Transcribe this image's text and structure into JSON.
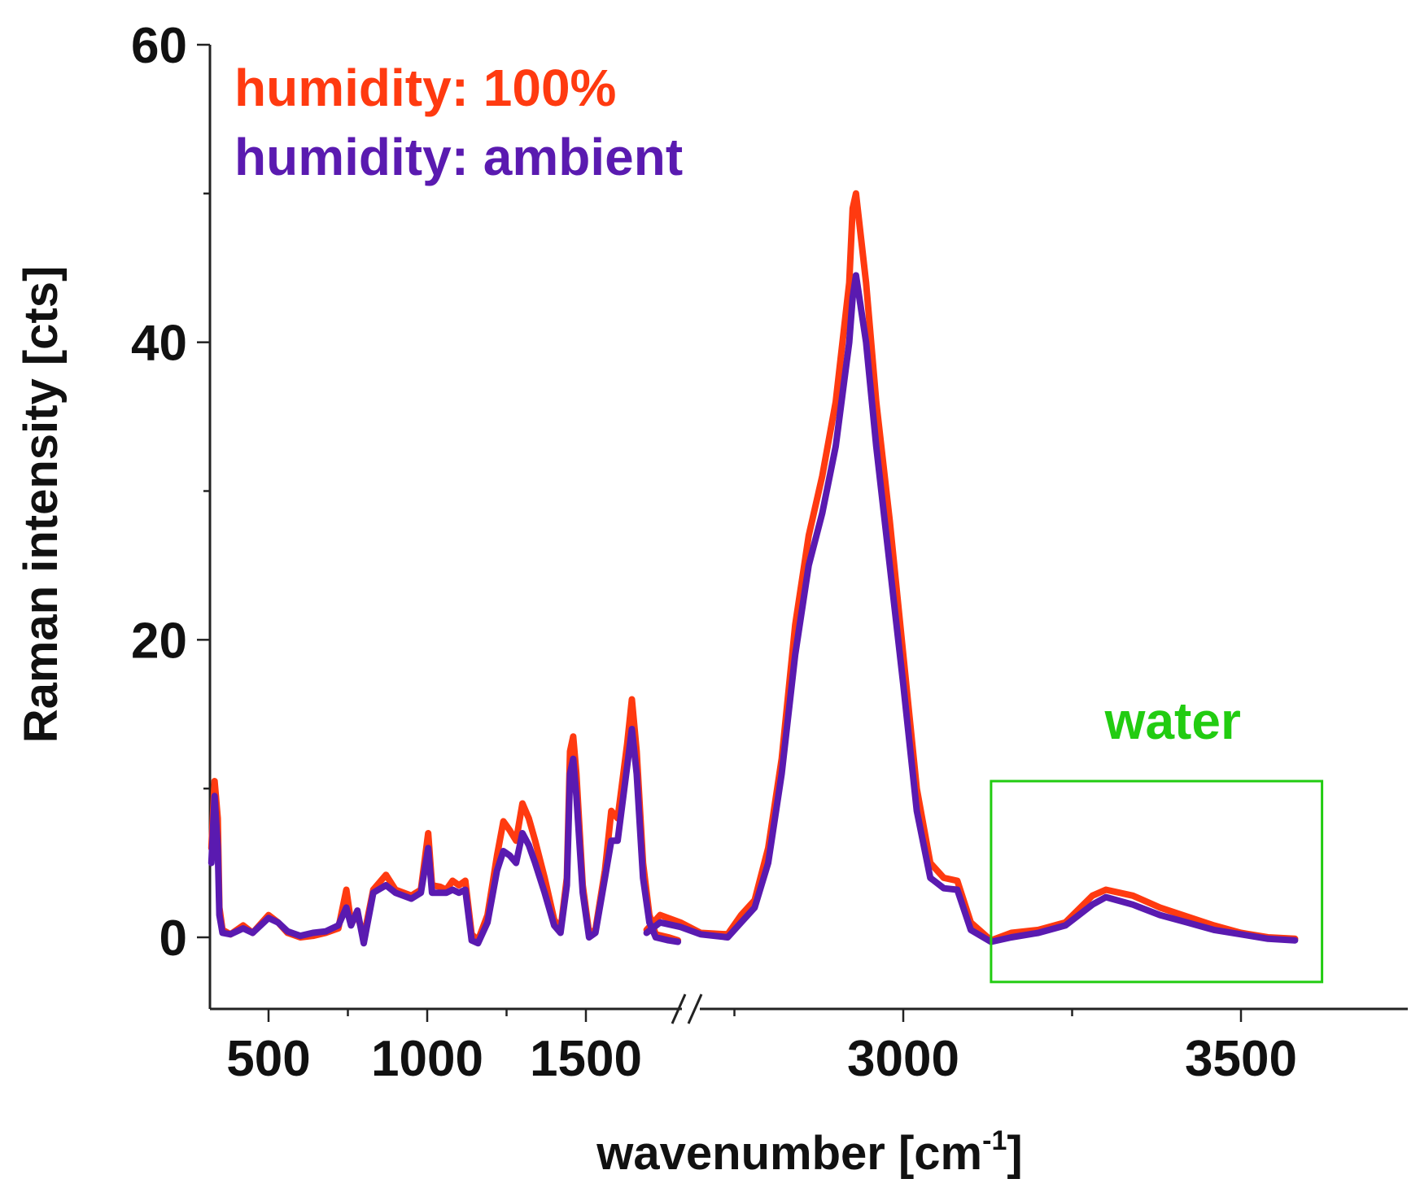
{
  "chart_data": {
    "type": "line",
    "title": "",
    "xlabel": "wavenumber [cm",
    "xlabel_sup": "-1",
    "xlabel_close": "]",
    "ylabel": "Raman intensity [cts]",
    "ylim": [
      -5,
      60
    ],
    "yticks": [
      0,
      20,
      40,
      60
    ],
    "xticks": [
      500,
      1000,
      1500,
      3000,
      3500
    ],
    "axis_break": [
      1820,
      2600
    ],
    "segments": [
      [
        320,
        1820
      ],
      [
        2600,
        3700
      ]
    ],
    "legend": [
      {
        "label": "humidity: 100%",
        "color": "#ff3a10"
      },
      {
        "label": "humidity: ambient",
        "color": "#5a1ab0"
      }
    ],
    "annotation": {
      "label": "water",
      "color": "#22cc11",
      "box_x": [
        3130,
        3620
      ],
      "box_y": [
        -3,
        10.5
      ]
    },
    "series": [
      {
        "name": "humidity: 100%",
        "color": "#ff3a10",
        "points": [
          [
            320,
            6
          ],
          [
            330,
            10.5
          ],
          [
            340,
            8
          ],
          [
            345,
            2
          ],
          [
            355,
            0.5
          ],
          [
            380,
            0.2
          ],
          [
            420,
            0.8
          ],
          [
            450,
            0.3
          ],
          [
            500,
            1.5
          ],
          [
            530,
            1.0
          ],
          [
            560,
            0.3
          ],
          [
            600,
            0.0
          ],
          [
            640,
            0.1
          ],
          [
            680,
            0.3
          ],
          [
            720,
            0.6
          ],
          [
            745,
            3.2
          ],
          [
            760,
            1.0
          ],
          [
            780,
            1.5
          ],
          [
            800,
            0.0
          ],
          [
            830,
            3.2
          ],
          [
            870,
            4.2
          ],
          [
            900,
            3.2
          ],
          [
            950,
            2.8
          ],
          [
            980,
            3.2
          ],
          [
            1003,
            7.0
          ],
          [
            1015,
            3.5
          ],
          [
            1040,
            3.4
          ],
          [
            1060,
            3.2
          ],
          [
            1080,
            3.8
          ],
          [
            1100,
            3.5
          ],
          [
            1120,
            3.8
          ],
          [
            1140,
            0.2
          ],
          [
            1160,
            -0.2
          ],
          [
            1190,
            1.5
          ],
          [
            1220,
            5.5
          ],
          [
            1240,
            7.8
          ],
          [
            1260,
            7.2
          ],
          [
            1280,
            6.5
          ],
          [
            1300,
            9.0
          ],
          [
            1320,
            8.0
          ],
          [
            1340,
            6.5
          ],
          [
            1370,
            4.0
          ],
          [
            1400,
            1.2
          ],
          [
            1420,
            0.5
          ],
          [
            1440,
            4.0
          ],
          [
            1450,
            12.5
          ],
          [
            1460,
            13.5
          ],
          [
            1470,
            11.0
          ],
          [
            1490,
            3.5
          ],
          [
            1510,
            0.3
          ],
          [
            1530,
            0.5
          ],
          [
            1560,
            4.5
          ],
          [
            1580,
            8.5
          ],
          [
            1600,
            8.0
          ],
          [
            1630,
            13.0
          ],
          [
            1645,
            16.0
          ],
          [
            1660,
            12.5
          ],
          [
            1680,
            5.0
          ],
          [
            1700,
            1.5
          ],
          [
            1720,
            0.2
          ],
          [
            1760,
            0.0
          ],
          [
            1790,
            -0.2
          ]
        ],
        "points2": [
          [
            2620,
            0.5
          ],
          [
            2640,
            1.5
          ],
          [
            2670,
            1.0
          ],
          [
            2700,
            0.3
          ],
          [
            2740,
            0.2
          ],
          [
            2760,
            1.5
          ],
          [
            2780,
            2.5
          ],
          [
            2800,
            6.0
          ],
          [
            2820,
            12.0
          ],
          [
            2840,
            21.0
          ],
          [
            2860,
            27.0
          ],
          [
            2880,
            31.0
          ],
          [
            2900,
            36.0
          ],
          [
            2920,
            44.0
          ],
          [
            2925,
            49.0
          ],
          [
            2930,
            50.0
          ],
          [
            2945,
            44.0
          ],
          [
            2960,
            36.0
          ],
          [
            2980,
            28.0
          ],
          [
            3000,
            19.0
          ],
          [
            3020,
            10.0
          ],
          [
            3040,
            5.0
          ],
          [
            3060,
            4.0
          ],
          [
            3080,
            3.8
          ],
          [
            3100,
            1.0
          ],
          [
            3130,
            -0.2
          ],
          [
            3160,
            0.3
          ],
          [
            3200,
            0.5
          ],
          [
            3240,
            1.0
          ],
          [
            3280,
            2.8
          ],
          [
            3300,
            3.2
          ],
          [
            3340,
            2.8
          ],
          [
            3380,
            2.0
          ],
          [
            3420,
            1.4
          ],
          [
            3460,
            0.8
          ],
          [
            3500,
            0.3
          ],
          [
            3540,
            0.0
          ],
          [
            3580,
            -0.1
          ]
        ]
      },
      {
        "name": "humidity: ambient",
        "color": "#5a1ab0",
        "points": [
          [
            320,
            5
          ],
          [
            330,
            9.5
          ],
          [
            340,
            6
          ],
          [
            345,
            1.5
          ],
          [
            355,
            0.3
          ],
          [
            380,
            0.2
          ],
          [
            420,
            0.6
          ],
          [
            450,
            0.3
          ],
          [
            500,
            1.3
          ],
          [
            530,
            1.0
          ],
          [
            560,
            0.4
          ],
          [
            600,
            0.1
          ],
          [
            640,
            0.3
          ],
          [
            680,
            0.4
          ],
          [
            720,
            0.8
          ],
          [
            745,
            2.0
          ],
          [
            760,
            0.8
          ],
          [
            780,
            1.8
          ],
          [
            800,
            -0.4
          ],
          [
            830,
            3.0
          ],
          [
            870,
            3.5
          ],
          [
            900,
            3.0
          ],
          [
            950,
            2.6
          ],
          [
            980,
            3.0
          ],
          [
            1003,
            6.0
          ],
          [
            1015,
            3.0
          ],
          [
            1040,
            3.0
          ],
          [
            1060,
            3.0
          ],
          [
            1080,
            3.2
          ],
          [
            1100,
            3.0
          ],
          [
            1120,
            3.2
          ],
          [
            1140,
            -0.2
          ],
          [
            1160,
            -0.4
          ],
          [
            1190,
            1.0
          ],
          [
            1220,
            4.5
          ],
          [
            1240,
            5.8
          ],
          [
            1260,
            5.5
          ],
          [
            1280,
            5.0
          ],
          [
            1300,
            7.0
          ],
          [
            1320,
            6.2
          ],
          [
            1340,
            5.0
          ],
          [
            1370,
            3.0
          ],
          [
            1400,
            0.8
          ],
          [
            1420,
            0.3
          ],
          [
            1440,
            3.5
          ],
          [
            1450,
            11.0
          ],
          [
            1460,
            12.0
          ],
          [
            1470,
            9.5
          ],
          [
            1490,
            3.0
          ],
          [
            1510,
            0.0
          ],
          [
            1530,
            0.3
          ],
          [
            1560,
            4.0
          ],
          [
            1580,
            6.5
          ],
          [
            1600,
            6.5
          ],
          [
            1630,
            11.5
          ],
          [
            1645,
            14.0
          ],
          [
            1660,
            11.0
          ],
          [
            1680,
            4.0
          ],
          [
            1700,
            1.0
          ],
          [
            1720,
            0.0
          ],
          [
            1760,
            -0.2
          ],
          [
            1790,
            -0.3
          ]
        ],
        "points2": [
          [
            2620,
            0.3
          ],
          [
            2640,
            1.0
          ],
          [
            2670,
            0.7
          ],
          [
            2700,
            0.2
          ],
          [
            2740,
            0.0
          ],
          [
            2760,
            1.0
          ],
          [
            2780,
            2.0
          ],
          [
            2800,
            5.0
          ],
          [
            2820,
            11.0
          ],
          [
            2840,
            19.0
          ],
          [
            2860,
            25.0
          ],
          [
            2880,
            28.5
          ],
          [
            2900,
            33.0
          ],
          [
            2920,
            40.0
          ],
          [
            2925,
            43.0
          ],
          [
            2930,
            44.5
          ],
          [
            2945,
            40.0
          ],
          [
            2960,
            33.0
          ],
          [
            2980,
            25.0
          ],
          [
            3000,
            17.0
          ],
          [
            3020,
            8.5
          ],
          [
            3040,
            4.0
          ],
          [
            3060,
            3.3
          ],
          [
            3080,
            3.2
          ],
          [
            3100,
            0.5
          ],
          [
            3130,
            -0.3
          ],
          [
            3160,
            0.0
          ],
          [
            3200,
            0.3
          ],
          [
            3240,
            0.8
          ],
          [
            3280,
            2.2
          ],
          [
            3300,
            2.7
          ],
          [
            3340,
            2.2
          ],
          [
            3380,
            1.5
          ],
          [
            3420,
            1.0
          ],
          [
            3460,
            0.5
          ],
          [
            3500,
            0.2
          ],
          [
            3540,
            -0.1
          ],
          [
            3580,
            -0.2
          ]
        ]
      }
    ]
  }
}
